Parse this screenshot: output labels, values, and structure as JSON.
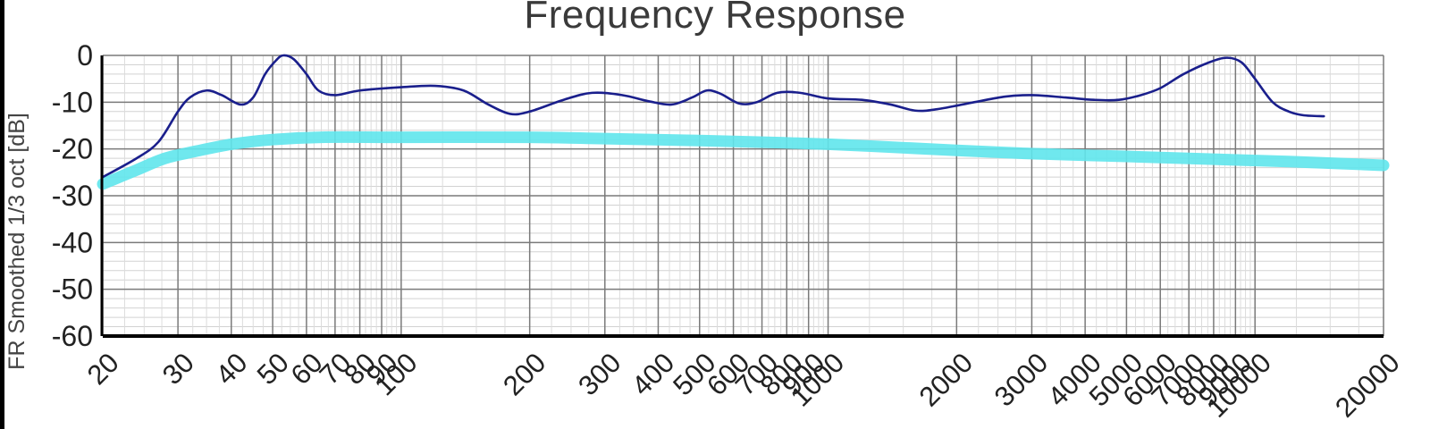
{
  "chart_data": {
    "type": "line",
    "title": "Frequency Response",
    "xlabel": "",
    "ylabel": "FR Smoothed 1/3 oct [dB]",
    "xscale": "log",
    "xlim": [
      20,
      20000
    ],
    "ylim": [
      -60,
      0
    ],
    "grid": true,
    "x_ticks": [
      20,
      30,
      40,
      50,
      60,
      70,
      80,
      90,
      100,
      200,
      300,
      400,
      500,
      600,
      700,
      800,
      900,
      1000,
      2000,
      3000,
      4000,
      5000,
      6000,
      7000,
      8000,
      9000,
      10000,
      20000
    ],
    "x_tick_labels": [
      "20",
      "30",
      "40",
      "50",
      "60",
      "70",
      "80",
      "90",
      "100",
      "200",
      "300",
      "400",
      "500",
      "600",
      "700",
      "800",
      "900",
      "1000",
      "2000",
      "3000",
      "4000",
      "5000",
      "6000",
      "7000",
      "8000",
      "9000",
      "10000",
      "20000"
    ],
    "y_ticks": [
      0,
      -10,
      -20,
      -30,
      -40,
      -50,
      -60
    ],
    "y_tick_labels": [
      "0",
      "-10",
      "-20",
      "-30",
      "-40",
      "-50",
      "-60"
    ],
    "series": [
      {
        "color": "#1a1f8c",
        "style": "thin",
        "points": [
          [
            20,
            -26
          ],
          [
            24,
            -22
          ],
          [
            27,
            -18.5
          ],
          [
            30,
            -12
          ],
          [
            32,
            -9
          ],
          [
            35,
            -7.5
          ],
          [
            38,
            -8.5
          ],
          [
            42,
            -10.5
          ],
          [
            45,
            -9
          ],
          [
            48,
            -4
          ],
          [
            51,
            -1
          ],
          [
            53,
            0
          ],
          [
            56,
            -0.8
          ],
          [
            60,
            -4
          ],
          [
            64,
            -7.5
          ],
          [
            70,
            -8.5
          ],
          [
            80,
            -7.5
          ],
          [
            100,
            -6.8
          ],
          [
            120,
            -6.5
          ],
          [
            140,
            -7.5
          ],
          [
            160,
            -10.5
          ],
          [
            180,
            -12.5
          ],
          [
            200,
            -12
          ],
          [
            240,
            -9.5
          ],
          [
            280,
            -8
          ],
          [
            330,
            -8.5
          ],
          [
            380,
            -9.8
          ],
          [
            430,
            -10.5
          ],
          [
            480,
            -9
          ],
          [
            520,
            -7.5
          ],
          [
            560,
            -8.2
          ],
          [
            620,
            -10.3
          ],
          [
            680,
            -10
          ],
          [
            760,
            -8
          ],
          [
            860,
            -8
          ],
          [
            1000,
            -9.2
          ],
          [
            1200,
            -9.5
          ],
          [
            1400,
            -10.5
          ],
          [
            1600,
            -11.8
          ],
          [
            1800,
            -11.5
          ],
          [
            2200,
            -10
          ],
          [
            2600,
            -8.8
          ],
          [
            3000,
            -8.5
          ],
          [
            3600,
            -9
          ],
          [
            4200,
            -9.5
          ],
          [
            4800,
            -9.5
          ],
          [
            5400,
            -8.5
          ],
          [
            6000,
            -7
          ],
          [
            6800,
            -4
          ],
          [
            7800,
            -1.5
          ],
          [
            8600,
            -0.5
          ],
          [
            9300,
            -1.5
          ],
          [
            10000,
            -5
          ],
          [
            11000,
            -10
          ],
          [
            12000,
            -12
          ],
          [
            13000,
            -12.8
          ],
          [
            14500,
            -13
          ]
        ]
      },
      {
        "color": "#5fe6ec",
        "style": "thick-band",
        "points": [
          [
            20,
            -27.5
          ],
          [
            24,
            -24.5
          ],
          [
            28,
            -22
          ],
          [
            33,
            -20.5
          ],
          [
            40,
            -19
          ],
          [
            50,
            -18
          ],
          [
            65,
            -17.5
          ],
          [
            100,
            -17.5
          ],
          [
            200,
            -17.5
          ],
          [
            300,
            -17.8
          ],
          [
            500,
            -18.2
          ],
          [
            1000,
            -19
          ],
          [
            2000,
            -20.3
          ],
          [
            3000,
            -21
          ],
          [
            5000,
            -21.6
          ],
          [
            8000,
            -22.2
          ],
          [
            12000,
            -22.7
          ],
          [
            20000,
            -23.5
          ]
        ]
      }
    ]
  }
}
